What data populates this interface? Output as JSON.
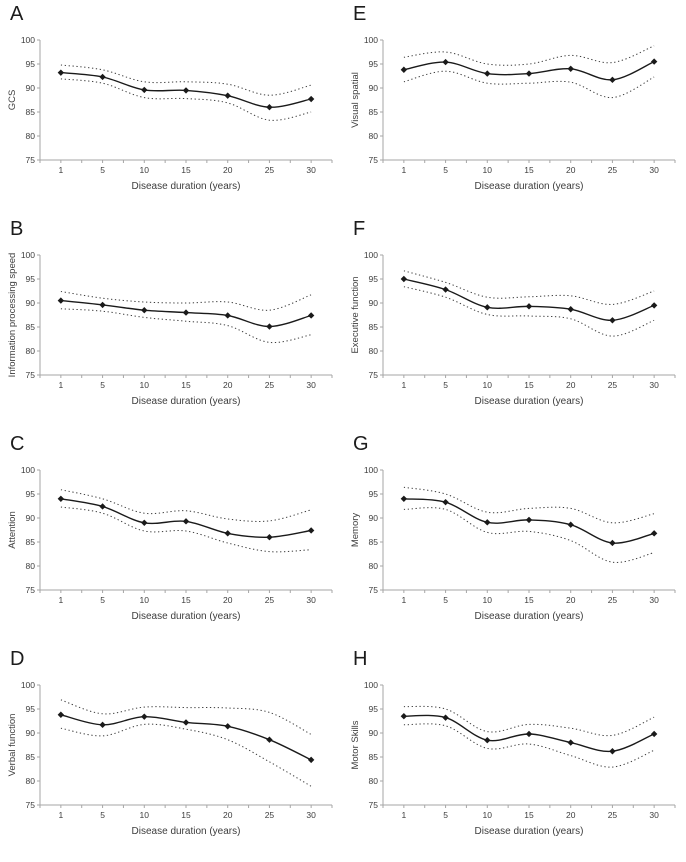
{
  "figure": {
    "description": "Eight-panel figure of cognitive domain scores versus disease duration, mean with dotted confidence bounds",
    "panel_order": [
      "A",
      "E",
      "B",
      "F",
      "C",
      "G",
      "D",
      "H"
    ]
  },
  "style": {
    "line_color": "#1a1a1a",
    "ci_color": "#3c3c3c",
    "axis_color": "#a6a6a6",
    "text_color": "#3d3d3d",
    "background": "#ffffff"
  },
  "chart_data": [
    {
      "type": "line",
      "panel": "A",
      "x": [
        1,
        5,
        10,
        15,
        20,
        25,
        30
      ],
      "xlabel": "Disease duration (years)",
      "ylabel": "GCS",
      "ylim": [
        75,
        100
      ],
      "yticks": [
        75,
        80,
        85,
        90,
        95,
        100
      ],
      "grid": false,
      "legend": "none",
      "series": [
        {
          "name": "upper-ci",
          "style": "dotted",
          "values": [
            94.8,
            93.8,
            91.3,
            91.3,
            90.8,
            88.5,
            90.6
          ]
        },
        {
          "name": "lower-ci",
          "style": "dotted",
          "values": [
            91.9,
            91.0,
            88.0,
            87.8,
            86.9,
            83.3,
            85.0
          ]
        },
        {
          "name": "mean",
          "style": "solid-diamond",
          "values": [
            93.2,
            92.3,
            89.6,
            89.5,
            88.4,
            86.0,
            87.7
          ]
        }
      ]
    },
    {
      "type": "line",
      "panel": "E",
      "x": [
        1,
        5,
        10,
        15,
        20,
        25,
        30
      ],
      "xlabel": "Disease duration (years)",
      "ylabel": "Visual spatial",
      "ylim": [
        75,
        100
      ],
      "yticks": [
        75,
        80,
        85,
        90,
        95,
        100
      ],
      "grid": false,
      "legend": "none",
      "series": [
        {
          "name": "upper-ci",
          "style": "dotted",
          "values": [
            96.4,
            97.5,
            95.0,
            95.0,
            96.8,
            95.3,
            98.8
          ]
        },
        {
          "name": "lower-ci",
          "style": "dotted",
          "values": [
            91.3,
            93.5,
            91.0,
            91.0,
            91.2,
            88.0,
            92.3
          ]
        },
        {
          "name": "mean",
          "style": "solid-diamond",
          "values": [
            93.8,
            95.4,
            93.0,
            93.0,
            94.0,
            91.7,
            95.5
          ]
        }
      ]
    },
    {
      "type": "line",
      "panel": "B",
      "x": [
        1,
        5,
        10,
        15,
        20,
        25,
        30
      ],
      "xlabel": "Disease duration (years)",
      "ylabel": "Information processing speed",
      "ylim": [
        75,
        100
      ],
      "yticks": [
        75,
        80,
        85,
        90,
        95,
        100
      ],
      "grid": false,
      "legend": "none",
      "series": [
        {
          "name": "upper-ci",
          "style": "dotted",
          "values": [
            92.4,
            91.0,
            90.2,
            90.0,
            90.2,
            88.5,
            91.7
          ]
        },
        {
          "name": "lower-ci",
          "style": "dotted",
          "values": [
            88.8,
            88.3,
            87.0,
            86.2,
            85.3,
            81.8,
            83.4
          ]
        },
        {
          "name": "mean",
          "style": "solid-diamond",
          "values": [
            90.5,
            89.6,
            88.5,
            88.0,
            87.4,
            85.1,
            87.4
          ]
        }
      ]
    },
    {
      "type": "line",
      "panel": "F",
      "x": [
        1,
        5,
        10,
        15,
        20,
        25,
        30
      ],
      "xlabel": "Disease duration (years)",
      "ylabel": "Executive function",
      "ylim": [
        75,
        100
      ],
      "yticks": [
        75,
        80,
        85,
        90,
        95,
        100
      ],
      "grid": false,
      "legend": "none",
      "series": [
        {
          "name": "upper-ci",
          "style": "dotted",
          "values": [
            96.7,
            94.3,
            91.2,
            91.3,
            91.5,
            89.7,
            92.5
          ]
        },
        {
          "name": "lower-ci",
          "style": "dotted",
          "values": [
            93.4,
            91.2,
            87.6,
            87.3,
            86.7,
            83.1,
            86.4
          ]
        },
        {
          "name": "mean",
          "style": "solid-diamond",
          "values": [
            95.0,
            92.8,
            89.1,
            89.3,
            88.7,
            86.4,
            89.5
          ]
        }
      ]
    },
    {
      "type": "line",
      "panel": "C",
      "x": [
        1,
        5,
        10,
        15,
        20,
        25,
        30
      ],
      "xlabel": "Disease duration (years)",
      "ylabel": "Attention",
      "ylim": [
        75,
        100
      ],
      "yticks": [
        75,
        80,
        85,
        90,
        95,
        100
      ],
      "grid": false,
      "legend": "none",
      "series": [
        {
          "name": "upper-ci",
          "style": "dotted",
          "values": [
            95.9,
            94.0,
            91.0,
            91.5,
            89.8,
            89.4,
            91.7
          ]
        },
        {
          "name": "lower-ci",
          "style": "dotted",
          "values": [
            92.3,
            91.0,
            87.3,
            87.3,
            84.8,
            83.0,
            83.4
          ]
        },
        {
          "name": "mean",
          "style": "solid-diamond",
          "values": [
            94.0,
            92.4,
            89.0,
            89.3,
            86.8,
            86.0,
            87.4
          ]
        }
      ]
    },
    {
      "type": "line",
      "panel": "G",
      "x": [
        1,
        5,
        10,
        15,
        20,
        25,
        30
      ],
      "xlabel": "Disease duration (years)",
      "ylabel": "Memory",
      "ylim": [
        75,
        100
      ],
      "yticks": [
        75,
        80,
        85,
        90,
        95,
        100
      ],
      "grid": false,
      "legend": "none",
      "series": [
        {
          "name": "upper-ci",
          "style": "dotted",
          "values": [
            96.4,
            95.0,
            91.2,
            92.0,
            92.0,
            89.0,
            90.9
          ]
        },
        {
          "name": "lower-ci",
          "style": "dotted",
          "values": [
            91.8,
            91.8,
            87.0,
            87.2,
            85.3,
            80.8,
            82.8
          ]
        },
        {
          "name": "mean",
          "style": "solid-diamond",
          "values": [
            94.0,
            93.3,
            89.1,
            89.6,
            88.6,
            84.8,
            86.8
          ]
        }
      ]
    },
    {
      "type": "line",
      "panel": "D",
      "x": [
        1,
        5,
        10,
        15,
        20,
        25,
        30
      ],
      "xlabel": "Disease duration (years)",
      "ylabel": "Verbal function",
      "ylim": [
        75,
        100
      ],
      "yticks": [
        75,
        80,
        85,
        90,
        95,
        100
      ],
      "grid": false,
      "legend": "none",
      "series": [
        {
          "name": "upper-ci",
          "style": "dotted",
          "values": [
            96.9,
            94.0,
            95.4,
            95.3,
            95.2,
            94.3,
            89.7
          ]
        },
        {
          "name": "lower-ci",
          "style": "dotted",
          "values": [
            91.0,
            89.4,
            91.8,
            90.8,
            88.6,
            84.0,
            78.9
          ]
        },
        {
          "name": "mean",
          "style": "solid-diamond",
          "values": [
            93.8,
            91.7,
            93.4,
            92.2,
            91.4,
            88.6,
            84.4
          ]
        }
      ]
    },
    {
      "type": "line",
      "panel": "H",
      "x": [
        1,
        5,
        10,
        15,
        20,
        25,
        30
      ],
      "xlabel": "Disease duration (years)",
      "ylabel": "Motor Skills",
      "ylim": [
        75,
        100
      ],
      "yticks": [
        75,
        80,
        85,
        90,
        95,
        100
      ],
      "grid": false,
      "legend": "none",
      "series": [
        {
          "name": "upper-ci",
          "style": "dotted",
          "values": [
            95.5,
            95.0,
            90.3,
            91.8,
            91.0,
            89.5,
            93.3
          ]
        },
        {
          "name": "lower-ci",
          "style": "dotted",
          "values": [
            91.7,
            91.5,
            86.8,
            87.7,
            85.3,
            82.9,
            86.4
          ]
        },
        {
          "name": "mean",
          "style": "solid-diamond",
          "values": [
            93.5,
            93.2,
            88.5,
            89.8,
            88.0,
            86.2,
            89.8
          ]
        }
      ]
    }
  ]
}
